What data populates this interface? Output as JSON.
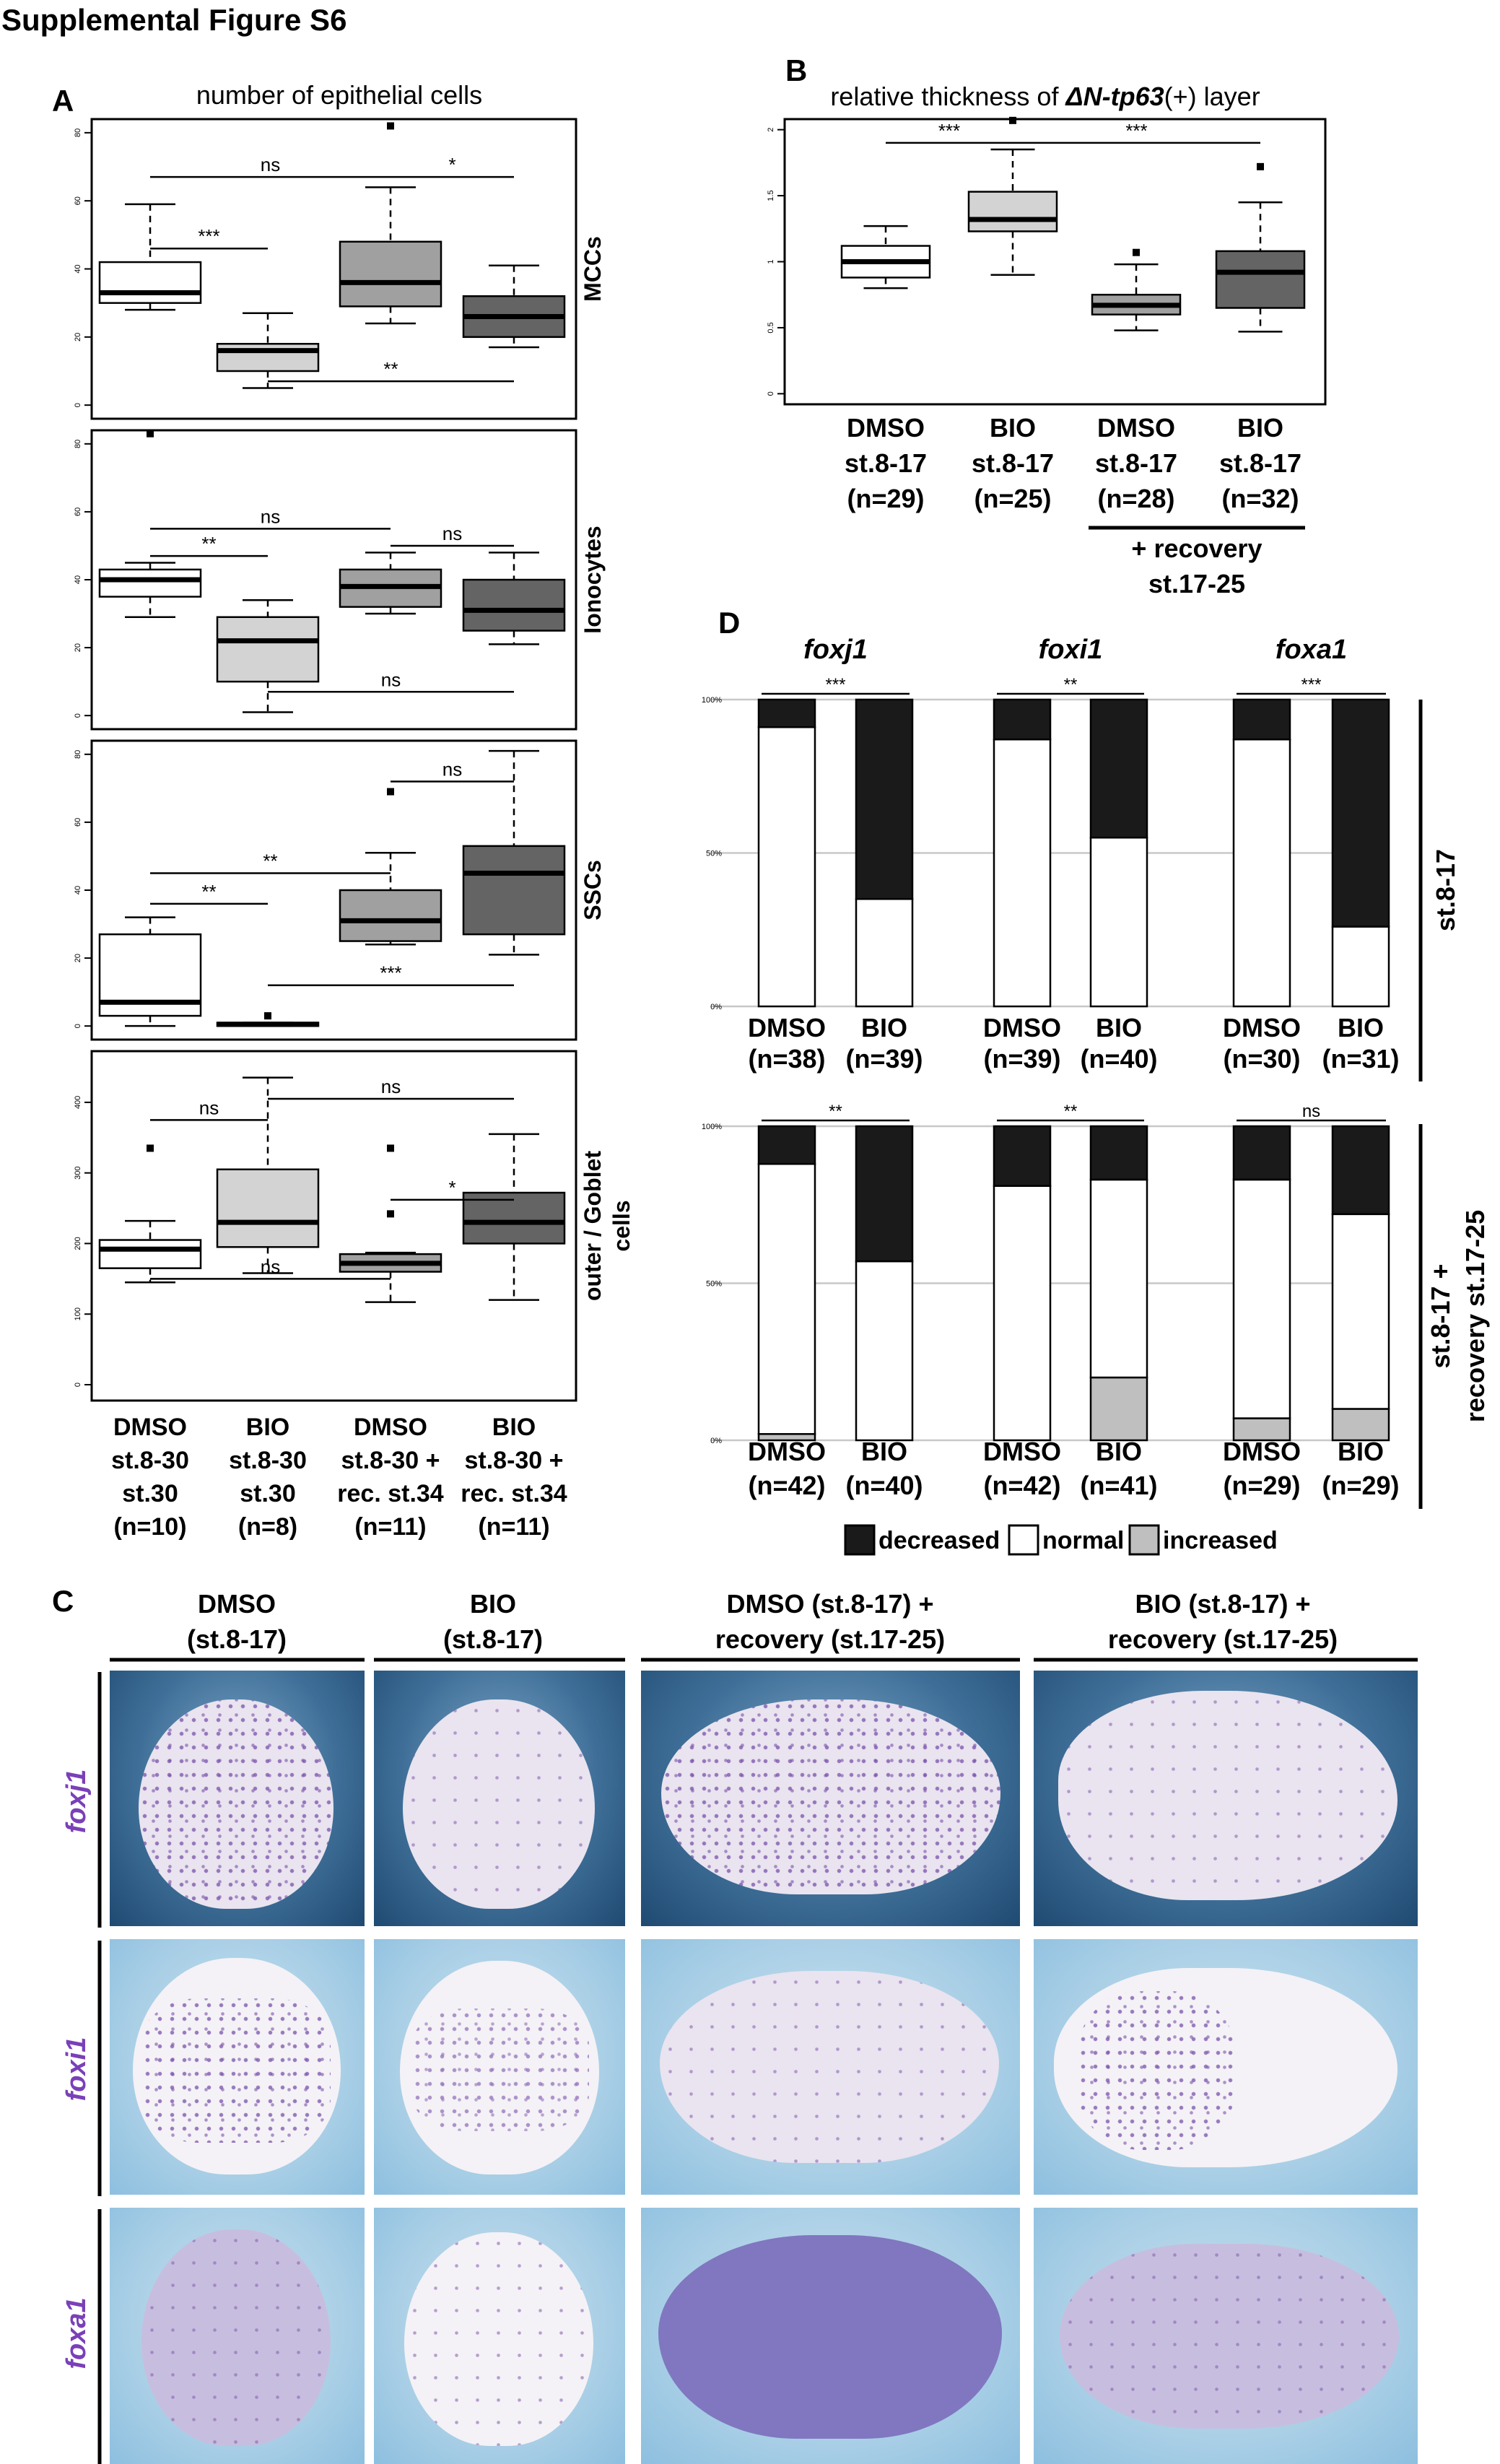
{
  "figure_title": "Supplemental Figure S6",
  "panel_letters": {
    "a": "A",
    "b": "B",
    "c": "C",
    "d": "D"
  },
  "panel_a": {
    "title": "number of epithelial cells",
    "groups": [
      {
        "l1": "DMSO",
        "l2": "st.8-30",
        "l3": "st.30",
        "l4": "(n=10)"
      },
      {
        "l1": "BIO",
        "l2": "st.8-30",
        "l3": "st.30",
        "l4": "(n=8)"
      },
      {
        "l1": "DMSO",
        "l2": "st.8-30 +",
        "l3": "rec. st.34",
        "l4": "(n=11)"
      },
      {
        "l1": "BIO",
        "l2": "st.8-30 +",
        "l3": "rec. st.34",
        "l4": "(n=11)"
      }
    ]
  },
  "panel_b": {
    "title_prefix": "relative thickness of ",
    "title_gene": "ΔN-tp63",
    "title_suffix": "(+) layer",
    "groups": [
      {
        "l1": "DMSO",
        "l2": "st.8-17",
        "l3": "(n=29)"
      },
      {
        "l1": "BIO",
        "l2": "st.8-17",
        "l3": "(n=25)"
      },
      {
        "l1": "DMSO",
        "l2": "st.8-17",
        "l3": "(n=28)"
      },
      {
        "l1": "BIO",
        "l2": "st.8-17",
        "l3": "(n=32)"
      }
    ],
    "recovery_l1": "+ recovery",
    "recovery_l2": "st.17-25"
  },
  "panel_c": {
    "columns": [
      {
        "l1": "DMSO",
        "l2": "(st.8-17)"
      },
      {
        "l1": "BIO",
        "l2": "(st.8-17)"
      },
      {
        "l1": "DMSO (st.8-17) +",
        "l2": "recovery (st.17-25)"
      },
      {
        "l1": "BIO (st.8-17) +",
        "l2": "recovery (st.17-25)"
      }
    ],
    "rows": [
      "foxj1",
      "foxi1",
      "foxa1"
    ]
  },
  "panel_d": {
    "genes": [
      "foxj1",
      "foxi1",
      "foxa1"
    ],
    "row_labels": {
      "top": "st.8-17",
      "bottom_l1": "st.8-17 +",
      "bottom_l2": "recovery st.17-25"
    },
    "legend": {
      "decreased": "decreased",
      "normal": "normal",
      "increased": "increased"
    }
  },
  "colors": {
    "white_box": "#ffffff",
    "light_box": "#d3d3d3",
    "mid_box": "#a0a0a0",
    "dark_box": "#646464",
    "decreased": "#1a1a1a",
    "normal": "#ffffff",
    "increased": "#bfbfbf"
  },
  "chart_data": [
    {
      "type": "box",
      "panel": "A",
      "facet_label": "MCCs",
      "ylim": [
        0,
        80
      ],
      "yticks": [
        0,
        20,
        40,
        60,
        80
      ],
      "boxes": [
        {
          "min": 28,
          "q1": 30,
          "median": 33,
          "q3": 42,
          "max": 59,
          "outliers": []
        },
        {
          "min": 5,
          "q1": 10,
          "median": 16,
          "q3": 18,
          "max": 27,
          "outliers": []
        },
        {
          "min": 24,
          "q1": 29,
          "median": 36,
          "q3": 48,
          "max": 64,
          "outliers": [
            82
          ]
        },
        {
          "min": 17,
          "q1": 20,
          "median": 26,
          "q3": 32,
          "max": 41,
          "outliers": []
        }
      ],
      "significance": [
        {
          "from": 0,
          "to": 2,
          "at": 67,
          "label": "ns"
        },
        {
          "from": 2,
          "to": 3,
          "at": 67,
          "label": "*"
        },
        {
          "from": 0,
          "to": 1,
          "at": 46,
          "label": "***"
        },
        {
          "from": 1,
          "to": 3,
          "at": 7,
          "label": "**"
        }
      ]
    },
    {
      "type": "box",
      "panel": "A",
      "facet_label": "Ionocytes",
      "ylim": [
        0,
        80
      ],
      "yticks": [
        0,
        20,
        40,
        60,
        80
      ],
      "boxes": [
        {
          "min": 29,
          "q1": 35,
          "median": 40,
          "q3": 43,
          "max": 45,
          "outliers": [
            83
          ]
        },
        {
          "min": 1,
          "q1": 10,
          "median": 22,
          "q3": 29,
          "max": 34,
          "outliers": []
        },
        {
          "min": 30,
          "q1": 32,
          "median": 38,
          "q3": 43,
          "max": 48,
          "outliers": []
        },
        {
          "min": 21,
          "q1": 25,
          "median": 31,
          "q3": 40,
          "max": 48,
          "outliers": []
        }
      ],
      "significance": [
        {
          "from": 0,
          "to": 2,
          "at": 55,
          "label": "ns"
        },
        {
          "from": 2,
          "to": 3,
          "at": 50,
          "label": "ns"
        },
        {
          "from": 0,
          "to": 1,
          "at": 47,
          "label": "**"
        },
        {
          "from": 1,
          "to": 3,
          "at": 7,
          "label": "ns"
        }
      ]
    },
    {
      "type": "box",
      "panel": "A",
      "facet_label": "SSCs",
      "ylim": [
        0,
        80
      ],
      "yticks": [
        0,
        20,
        40,
        60,
        80
      ],
      "boxes": [
        {
          "min": 0,
          "q1": 3,
          "median": 7,
          "q3": 27,
          "max": 32,
          "outliers": []
        },
        {
          "min": 0,
          "q1": 0,
          "median": 0.5,
          "q3": 1,
          "max": 1,
          "outliers": [
            3
          ]
        },
        {
          "min": 24,
          "q1": 25,
          "median": 31,
          "q3": 40,
          "max": 51,
          "outliers": [
            69
          ]
        },
        {
          "min": 21,
          "q1": 27,
          "median": 45,
          "q3": 53,
          "max": 81,
          "outliers": []
        }
      ],
      "significance": [
        {
          "from": 2,
          "to": 3,
          "at": 72,
          "label": "ns"
        },
        {
          "from": 0,
          "to": 2,
          "at": 45,
          "label": "**"
        },
        {
          "from": 0,
          "to": 1,
          "at": 36,
          "label": "**"
        },
        {
          "from": 1,
          "to": 3,
          "at": 12,
          "label": "***"
        }
      ]
    },
    {
      "type": "box",
      "panel": "A",
      "facet_label": "outer / Goblet cells",
      "ylim": [
        0,
        450
      ],
      "yticks": [
        0,
        100,
        200,
        300,
        400
      ],
      "boxes": [
        {
          "min": 145,
          "q1": 165,
          "median": 192,
          "q3": 205,
          "max": 232,
          "outliers": [
            335
          ]
        },
        {
          "min": 158,
          "q1": 195,
          "median": 230,
          "q3": 305,
          "max": 435,
          "outliers": []
        },
        {
          "min": 117,
          "q1": 160,
          "median": 172,
          "q3": 185,
          "max": 187,
          "outliers": [
            242,
            335
          ]
        },
        {
          "min": 120,
          "q1": 200,
          "median": 230,
          "q3": 272,
          "max": 355,
          "outliers": []
        }
      ],
      "significance": [
        {
          "from": 0,
          "to": 1,
          "at": 375,
          "label": "ns"
        },
        {
          "from": 1,
          "to": 3,
          "at": 405,
          "label": "ns"
        },
        {
          "from": 2,
          "to": 3,
          "at": 262,
          "label": "*"
        },
        {
          "from": 0,
          "to": 2,
          "at": 150,
          "label": "ns"
        }
      ]
    },
    {
      "type": "box",
      "panel": "B",
      "ylim": [
        0,
        2.0
      ],
      "yticks": [
        0,
        0.5,
        1.0,
        1.5,
        2.0
      ],
      "boxes": [
        {
          "min": 0.8,
          "q1": 0.88,
          "median": 1.0,
          "q3": 1.12,
          "max": 1.27,
          "outliers": []
        },
        {
          "min": 0.9,
          "q1": 1.23,
          "median": 1.32,
          "q3": 1.53,
          "max": 1.85,
          "outliers": [
            2.07
          ]
        },
        {
          "min": 0.48,
          "q1": 0.6,
          "median": 0.67,
          "q3": 0.75,
          "max": 0.98,
          "outliers": [
            1.07
          ]
        },
        {
          "min": 0.47,
          "q1": 0.65,
          "median": 0.92,
          "q3": 1.08,
          "max": 1.45,
          "outliers": [
            1.72
          ]
        }
      ],
      "significance": [
        {
          "from": 0,
          "to": 1,
          "at": 1.9,
          "label": "***"
        },
        {
          "from": 1,
          "to": 3,
          "at": 1.9,
          "label": "***"
        }
      ]
    },
    {
      "type": "stacked_bar",
      "panel": "D",
      "row": "st.8-17",
      "yticks": [
        "0%",
        "50%",
        "100%"
      ],
      "series_order": [
        "normal",
        "decreased",
        "increased"
      ],
      "genes": [
        {
          "gene": "foxj1",
          "sig": "***",
          "bars": [
            {
              "label": "DMSO",
              "n": "(n=38)",
              "normal": 91,
              "decreased": 9,
              "increased": 0
            },
            {
              "label": "BIO",
              "n": "(n=39)",
              "normal": 35,
              "decreased": 65,
              "increased": 0
            }
          ]
        },
        {
          "gene": "foxi1",
          "sig": "**",
          "bars": [
            {
              "label": "DMSO",
              "n": "(n=39)",
              "normal": 87,
              "decreased": 13,
              "increased": 0
            },
            {
              "label": "BIO",
              "n": "(n=40)",
              "normal": 55,
              "decreased": 45,
              "increased": 0
            }
          ]
        },
        {
          "gene": "foxa1",
          "sig": "***",
          "bars": [
            {
              "label": "DMSO",
              "n": "(n=30)",
              "normal": 87,
              "decreased": 13,
              "increased": 0
            },
            {
              "label": "BIO",
              "n": "(n=31)",
              "normal": 26,
              "decreased": 74,
              "increased": 0
            }
          ]
        }
      ]
    },
    {
      "type": "stacked_bar",
      "panel": "D",
      "row": "st.8-17 + recovery st.17-25",
      "yticks": [
        "0%",
        "50%",
        "100%"
      ],
      "series_order": [
        "increased",
        "normal",
        "decreased"
      ],
      "genes": [
        {
          "gene": "foxj1",
          "sig": "**",
          "bars": [
            {
              "label": "DMSO",
              "n": "(n=42)",
              "increased": 2,
              "normal": 86,
              "decreased": 12
            },
            {
              "label": "BIO",
              "n": "(n=40)",
              "increased": 0,
              "normal": 57,
              "decreased": 43
            }
          ]
        },
        {
          "gene": "foxi1",
          "sig": "**",
          "bars": [
            {
              "label": "DMSO",
              "n": "(n=42)",
              "increased": 0,
              "normal": 81,
              "decreased": 19
            },
            {
              "label": "BIO",
              "n": "(n=41)",
              "increased": 20,
              "normal": 63,
              "decreased": 17
            }
          ]
        },
        {
          "gene": "foxa1",
          "sig": "ns",
          "bars": [
            {
              "label": "DMSO",
              "n": "(n=29)",
              "increased": 7,
              "normal": 76,
              "decreased": 17
            },
            {
              "label": "BIO",
              "n": "(n=29)",
              "increased": 10,
              "normal": 62,
              "decreased": 28
            }
          ]
        }
      ]
    }
  ]
}
